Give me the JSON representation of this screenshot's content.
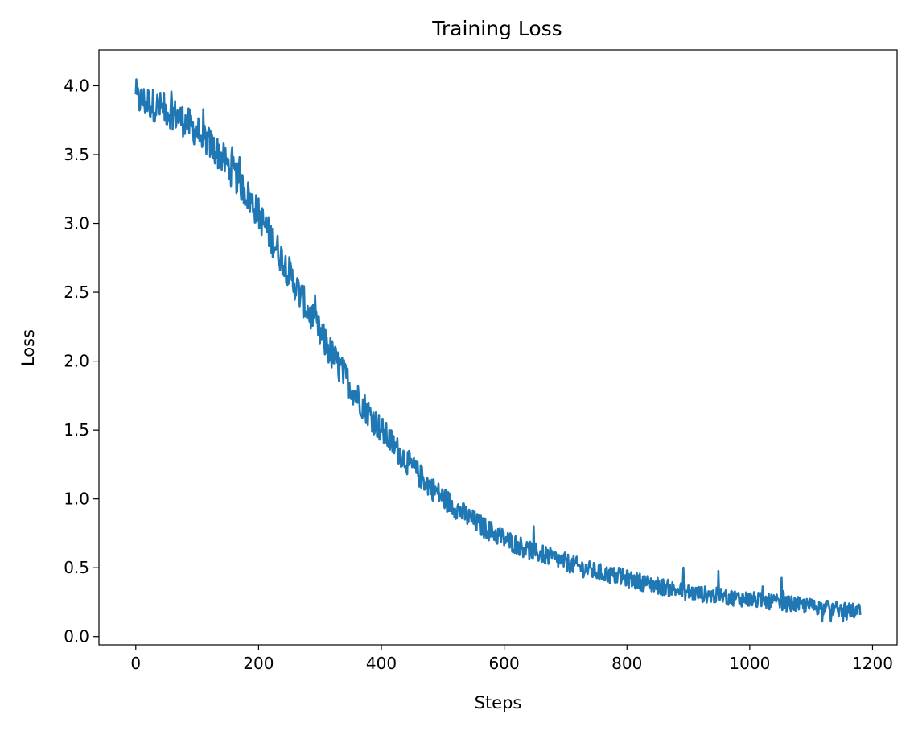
{
  "chart_data": {
    "type": "line",
    "title": "Training Loss",
    "xlabel": "Steps",
    "ylabel": "Loss",
    "xlim": [
      -60,
      1240
    ],
    "ylim": [
      -0.06,
      4.26
    ],
    "xticks": [
      0,
      200,
      400,
      600,
      800,
      1000,
      1200
    ],
    "xtick_labels": [
      "0",
      "200",
      "400",
      "600",
      "800",
      "1000",
      "1200"
    ],
    "yticks": [
      0.0,
      0.5,
      1.0,
      1.5,
      2.0,
      2.5,
      3.0,
      3.5,
      4.0
    ],
    "ytick_labels": [
      "0.0",
      "0.5",
      "1.0",
      "1.5",
      "2.0",
      "2.5",
      "3.0",
      "3.5",
      "4.0"
    ],
    "grid": false,
    "legend": "none",
    "series": [
      {
        "color": "#1f77b4",
        "x": [
          0,
          20,
          40,
          60,
          80,
          100,
          120,
          140,
          160,
          180,
          200,
          220,
          240,
          260,
          280,
          300,
          320,
          340,
          360,
          380,
          400,
          420,
          440,
          460,
          480,
          500,
          520,
          540,
          560,
          580,
          600,
          620,
          640,
          660,
          680,
          700,
          720,
          740,
          760,
          780,
          800,
          820,
          840,
          860,
          880,
          900,
          920,
          940,
          960,
          980,
          1000,
          1020,
          1040,
          1060,
          1080,
          1100,
          1120,
          1140,
          1160,
          1180
        ],
        "y": [
          3.9,
          3.88,
          3.84,
          3.8,
          3.74,
          3.67,
          3.58,
          3.48,
          3.36,
          3.22,
          3.07,
          2.9,
          2.73,
          2.55,
          2.37,
          2.2,
          2.04,
          1.89,
          1.75,
          1.62,
          1.5,
          1.39,
          1.28,
          1.18,
          1.09,
          1.01,
          0.94,
          0.87,
          0.81,
          0.76,
          0.71,
          0.67,
          0.63,
          0.6,
          0.57,
          0.54,
          0.51,
          0.48,
          0.46,
          0.44,
          0.42,
          0.4,
          0.38,
          0.36,
          0.34,
          0.32,
          0.31,
          0.3,
          0.29,
          0.28,
          0.27,
          0.26,
          0.25,
          0.24,
          0.23,
          0.22,
          0.21,
          0.2,
          0.19,
          0.18
        ]
      }
    ]
  }
}
